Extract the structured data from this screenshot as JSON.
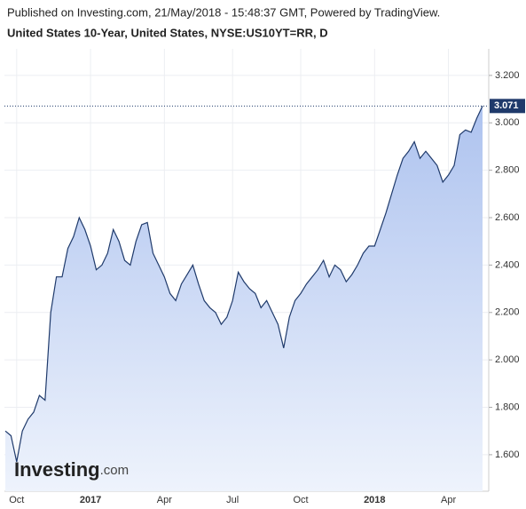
{
  "chart_data": {
    "type": "area",
    "title": "United States 10-Year, United States, NYSE:US10YT=RR, D",
    "subtitle": "Published on Investing.com, 21/May/2018 - 15:48:37 GMT, Powered by TradingView.",
    "logo_main": "Investing",
    "logo_suffix": ".com",
    "categories": [
      null,
      null,
      "Oct",
      null,
      null,
      null,
      null,
      null,
      null,
      null,
      null,
      null,
      null,
      null,
      null,
      "2017",
      null,
      null,
      null,
      null,
      null,
      null,
      null,
      null,
      null,
      null,
      null,
      null,
      "Apr",
      null,
      null,
      null,
      null,
      null,
      null,
      null,
      null,
      null,
      null,
      null,
      "Jul",
      null,
      null,
      null,
      null,
      null,
      null,
      null,
      null,
      null,
      null,
      null,
      "Oct",
      null,
      null,
      null,
      null,
      null,
      null,
      null,
      null,
      null,
      null,
      null,
      null,
      "2018",
      null,
      null,
      null,
      null,
      null,
      null,
      null,
      null,
      null,
      null,
      null,
      null,
      "Apr",
      null,
      null,
      null,
      null,
      null,
      null
    ],
    "values": [
      1.7,
      1.68,
      1.57,
      1.7,
      1.75,
      1.78,
      1.85,
      1.83,
      2.2,
      2.35,
      2.35,
      2.47,
      2.52,
      2.6,
      2.55,
      2.48,
      2.38,
      2.4,
      2.45,
      2.55,
      2.5,
      2.42,
      2.4,
      2.5,
      2.57,
      2.58,
      2.45,
      2.4,
      2.35,
      2.28,
      2.25,
      2.32,
      2.36,
      2.4,
      2.32,
      2.25,
      2.22,
      2.2,
      2.15,
      2.18,
      2.25,
      2.37,
      2.33,
      2.3,
      2.28,
      2.22,
      2.25,
      2.2,
      2.15,
      2.05,
      2.18,
      2.25,
      2.28,
      2.32,
      2.35,
      2.38,
      2.42,
      2.35,
      2.4,
      2.38,
      2.33,
      2.36,
      2.4,
      2.45,
      2.48,
      2.48,
      2.55,
      2.62,
      2.7,
      2.78,
      2.85,
      2.88,
      2.92,
      2.85,
      2.88,
      2.85,
      2.82,
      2.75,
      2.78,
      2.82,
      2.95,
      2.97,
      2.96,
      3.02,
      3.071
    ],
    "color": "#1f3a6b",
    "ylim": [
      1.446,
      3.312
    ],
    "yticks": [
      {
        "value": 1.6,
        "label": "1.600"
      },
      {
        "value": 1.8,
        "label": "1.800"
      },
      {
        "value": 2.0,
        "label": "2.000"
      },
      {
        "value": 2.2,
        "label": "2.200"
      },
      {
        "value": 2.4,
        "label": "2.400"
      },
      {
        "value": 2.6,
        "label": "2.600"
      },
      {
        "value": 2.8,
        "label": "2.800"
      },
      {
        "value": 3.0,
        "label": "3.000"
      },
      {
        "value": 3.2,
        "label": "3.200"
      }
    ],
    "grid": true
  }
}
